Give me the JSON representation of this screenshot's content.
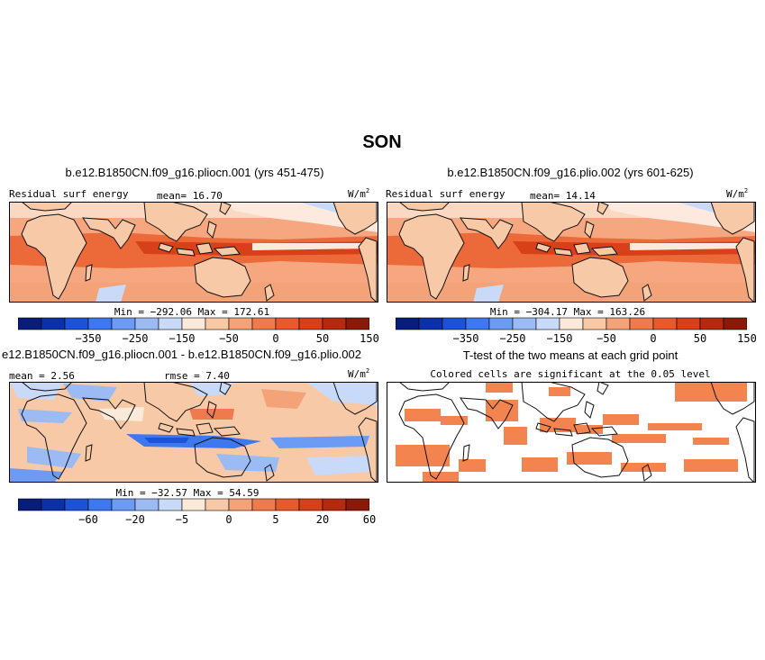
{
  "title": "SON",
  "panels": {
    "p1": {
      "case": "b.e12.B1850CN.f09_g16.pliocn.001 (yrs 451-475)",
      "left": "Residual surf energy",
      "stat": "mean=  16.70",
      "units": "W/m",
      "units_exp": "2",
      "minmax": "Min = −292.06  Max = 172.61"
    },
    "p2": {
      "case": "b.e12.B1850CN.f09_g16.plio.002 (yrs 601-625)",
      "left": "Residual surf energy",
      "stat": "mean=  14.14",
      "units": "W/m",
      "units_exp": "2",
      "minmax": "Min = −304.17  Max = 163.26"
    },
    "p3": {
      "case": "e12.B1850CN.f09_g16.pliocn.001 - b.e12.B1850CN.f09_g16.plio.002",
      "left": "mean =   2.56",
      "stat": "rmse =   7.40",
      "units": "W/m",
      "units_exp": "2",
      "minmax": "Min = −32.57  Max =  54.59"
    },
    "p4": {
      "case": "T-test of the two means at each grid point",
      "subtitle": "Colored cells are significant at the 0.05 level"
    }
  },
  "colorbars": {
    "abs": {
      "labels": [
        "−350",
        "−250",
        "−150",
        "−50",
        "0",
        "50",
        "150"
      ],
      "colors": [
        "#081d79",
        "#0b30a8",
        "#1c52d8",
        "#3e78f0",
        "#6b9bf2",
        "#9cbbf4",
        "#c8daf7",
        "#fbe9da",
        "#f8c9a6",
        "#f4a278",
        "#ef7a4d",
        "#e85a2c",
        "#d84019",
        "#b52a0e",
        "#8a1a07"
      ]
    },
    "diff": {
      "labels": [
        "−60",
        "−20",
        "−5",
        "0",
        "5",
        "20",
        "60"
      ],
      "colors": [
        "#081d79",
        "#0b30a8",
        "#1c52d8",
        "#3e78f0",
        "#6b9bf2",
        "#9cbbf4",
        "#c8daf7",
        "#fbe9da",
        "#f8c9a6",
        "#f4a278",
        "#ef7a4d",
        "#e85a2c",
        "#d84019",
        "#b52a0e",
        "#8a1a07"
      ]
    }
  },
  "chart_data": [
    {
      "type": "heatmap",
      "title": "b.e12.B1850CN.f09_g16.pliocn.001 (yrs 451-475)",
      "variable": "Residual surf energy",
      "units": "W/m2",
      "mean": 16.7,
      "min": -292.06,
      "max": 172.61,
      "colorbar_ticks": [
        -350,
        -250,
        -150,
        -50,
        0,
        50,
        150
      ]
    },
    {
      "type": "heatmap",
      "title": "b.e12.B1850CN.f09_g16.plio.002 (yrs 601-625)",
      "variable": "Residual surf energy",
      "units": "W/m2",
      "mean": 14.14,
      "min": -304.17,
      "max": 163.26,
      "colorbar_ticks": [
        -350,
        -250,
        -150,
        -50,
        0,
        50,
        150
      ]
    },
    {
      "type": "heatmap",
      "title": "e12.B1850CN.f09_g16.pliocn.001 - b.e12.B1850CN.f09_g16.plio.002",
      "units": "W/m2",
      "mean": 2.56,
      "rmse": 7.4,
      "min": -32.57,
      "max": 54.59,
      "colorbar_ticks": [
        -60,
        -20,
        -5,
        0,
        5,
        20,
        60
      ]
    },
    {
      "type": "heatmap",
      "title": "T-test of the two means at each grid point",
      "subtitle": "Colored cells are significant at the 0.05 level",
      "significance_level": 0.05
    }
  ]
}
